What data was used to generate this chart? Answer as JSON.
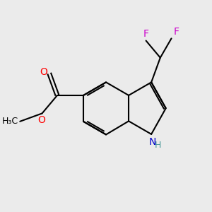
{
  "background_color": "#ebebeb",
  "bond_color": "#000000",
  "bond_width": 1.5,
  "atom_colors": {
    "C": "#000000",
    "N": "#0000cd",
    "O": "#ff0000",
    "F": "#cc00cc",
    "H": "#4a9a9a"
  },
  "font_size": 10,
  "figsize": [
    3.0,
    3.0
  ],
  "dpi": 100
}
